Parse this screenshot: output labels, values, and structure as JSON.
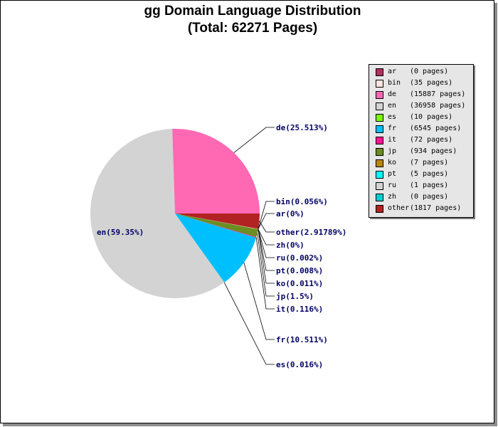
{
  "title": {
    "line1": "gg Domain Language Distribution",
    "line2": "(Total: 62271 Pages)"
  },
  "chart_data": {
    "type": "pie",
    "total_pages": 62271,
    "slices": [
      {
        "code": "ar",
        "pages": 0,
        "percent_label": "ar(0%)",
        "color": "#b03060"
      },
      {
        "code": "bin",
        "pages": 35,
        "percent_label": "bin(0.056%)",
        "color": "#ffe4e1"
      },
      {
        "code": "de",
        "pages": 15887,
        "percent_label": "de(25.513%)",
        "color": "#ff69b4"
      },
      {
        "code": "en",
        "pages": 36958,
        "percent_label": "en(59.35%)",
        "color": "#d3d3d3"
      },
      {
        "code": "es",
        "pages": 10,
        "percent_label": "es(0.016%)",
        "color": "#7cfc00"
      },
      {
        "code": "fr",
        "pages": 6545,
        "percent_label": "fr(10.511%)",
        "color": "#00bfff"
      },
      {
        "code": "it",
        "pages": 72,
        "percent_label": "it(0.116%)",
        "color": "#ff1493"
      },
      {
        "code": "jp",
        "pages": 934,
        "percent_label": "jp(1.5%)",
        "color": "#6b8e23"
      },
      {
        "code": "ko",
        "pages": 7,
        "percent_label": "ko(0.011%)",
        "color": "#b8860b"
      },
      {
        "code": "pt",
        "pages": 5,
        "percent_label": "pt(0.008%)",
        "color": "#00ffff"
      },
      {
        "code": "ru",
        "pages": 1,
        "percent_label": "ru(0.002%)",
        "color": "#d3d3d3"
      },
      {
        "code": "zh",
        "pages": 0,
        "percent_label": "zh(0%)",
        "color": "#00ced1"
      },
      {
        "code": "other",
        "pages": 1817,
        "percent_label": "other(2.91789%)",
        "color": "#b22222"
      }
    ],
    "legend": {
      "placement": "right",
      "entries": [
        {
          "code": "ar",
          "count": "(0 pages)",
          "color": "#b03060"
        },
        {
          "code": "bin",
          "count": "(35 pages)",
          "color": "#ffe4e1"
        },
        {
          "code": "de",
          "count": "(15887 pages)",
          "color": "#ff69b4"
        },
        {
          "code": "en",
          "count": "(36958 pages)",
          "color": "#d3d3d3"
        },
        {
          "code": "es",
          "count": "(10 pages)",
          "color": "#7cfc00"
        },
        {
          "code": "fr",
          "count": "(6545 pages)",
          "color": "#00bfff"
        },
        {
          "code": "it",
          "count": "(72 pages)",
          "color": "#ff1493"
        },
        {
          "code": "jp",
          "count": "(934 pages)",
          "color": "#6b8e23"
        },
        {
          "code": "ko",
          "count": "(7 pages)",
          "color": "#b8860b"
        },
        {
          "code": "pt",
          "count": "(5 pages)",
          "color": "#00ffff"
        },
        {
          "code": "ru",
          "count": "(1 pages)",
          "color": "#d3d3d3"
        },
        {
          "code": "zh",
          "count": "(0 pages)",
          "color": "#00ced1"
        },
        {
          "code": "other",
          "count": "(1817 pages)",
          "color": "#b22222"
        }
      ]
    }
  }
}
